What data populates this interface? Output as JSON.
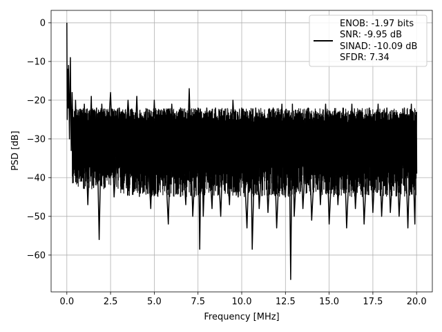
{
  "chart_data": {
    "type": "line",
    "xlabel": "Frequency [MHz]",
    "ylabel": "PSD [dB]",
    "xlim": [
      -0.9,
      20.9
    ],
    "ylim": [
      -69.5,
      3.2
    ],
    "xticks": [
      0.0,
      2.5,
      5.0,
      7.5,
      10.0,
      12.5,
      15.0,
      17.5,
      20.0
    ],
    "xtick_labels": [
      "0.0",
      "2.5",
      "5.0",
      "7.5",
      "10.0",
      "12.5",
      "15.0",
      "17.5",
      "20.0"
    ],
    "yticks": [
      0,
      -10,
      -20,
      -30,
      -40,
      -50,
      -60
    ],
    "ytick_labels": [
      "0",
      "−10",
      "−20",
      "−30",
      "−40",
      "−50",
      "−60"
    ],
    "grid": true,
    "legend_position": "top-right",
    "colors": {
      "line": "#000000",
      "grid": "#b0b0b0"
    },
    "series": [
      {
        "name": "ENOB: -1.97 bits\nSNR: -9.95 dB\nSINAD: -10.09 dB\nSFDR: 7.34",
        "x": [
          0.0,
          0.02,
          0.05,
          0.08,
          0.1,
          0.15,
          0.2,
          0.25,
          0.3,
          0.4,
          0.5,
          0.6,
          0.75,
          0.9,
          1.0,
          1.2,
          1.4,
          1.5,
          1.7,
          1.85,
          2.0,
          2.2,
          2.5,
          2.7,
          3.0,
          3.2,
          3.5,
          3.8,
          4.0,
          4.2,
          4.5,
          4.8,
          5.0,
          5.2,
          5.5,
          5.8,
          6.0,
          6.3,
          6.5,
          6.8,
          7.0,
          7.2,
          7.5,
          7.6,
          7.7,
          7.8,
          8.0,
          8.3,
          8.5,
          8.8,
          9.0,
          9.3,
          9.5,
          9.8,
          10.0,
          10.3,
          10.5,
          10.6,
          10.8,
          11.0,
          11.3,
          11.5,
          11.8,
          12.0,
          12.3,
          12.5,
          12.7,
          12.8,
          12.9,
          13.0,
          13.3,
          13.5,
          13.8,
          14.0,
          14.3,
          14.5,
          14.8,
          15.0,
          15.3,
          15.5,
          15.8,
          16.0,
          16.3,
          16.5,
          16.8,
          17.0,
          17.3,
          17.5,
          17.8,
          18.0,
          18.3,
          18.5,
          18.8,
          19.0,
          19.3,
          19.5,
          19.7,
          19.9,
          20.0
        ],
        "y": [
          0.0,
          -25.0,
          -12.0,
          -22.0,
          -11.0,
          -30.0,
          -9.0,
          -33.0,
          -18.0,
          -38.0,
          -20.0,
          -36.0,
          -24.0,
          -40.0,
          -21.0,
          -47.0,
          -19.0,
          -42.0,
          -22.0,
          -56.0,
          -21.0,
          -40.0,
          -18.0,
          -45.0,
          -22.0,
          -43.0,
          -20.0,
          -42.0,
          -19.0,
          -44.0,
          -23.0,
          -48.0,
          -20.0,
          -44.0,
          -23.0,
          -52.0,
          -21.0,
          -43.0,
          -22.0,
          -47.0,
          -17.0,
          -50.0,
          -22.0,
          -58.5,
          -23.0,
          -50.0,
          -22.0,
          -48.0,
          -22.0,
          -50.0,
          -23.0,
          -47.0,
          -20.0,
          -45.0,
          -22.0,
          -53.0,
          -23.0,
          -58.5,
          -22.0,
          -48.0,
          -24.0,
          -49.0,
          -22.0,
          -53.0,
          -21.0,
          -45.0,
          -23.0,
          -66.3,
          -21.0,
          -50.0,
          -23.0,
          -48.0,
          -22.0,
          -51.0,
          -24.0,
          -47.0,
          -21.0,
          -52.0,
          -24.0,
          -47.0,
          -22.0,
          -53.0,
          -21.0,
          -48.0,
          -23.0,
          -52.0,
          -22.0,
          -49.0,
          -21.0,
          -50.0,
          -22.0,
          -49.0,
          -24.0,
          -50.0,
          -22.0,
          -53.0,
          -21.0,
          -52.0,
          -23.0
        ]
      }
    ]
  },
  "legend": {
    "lines": [
      "ENOB: -1.97 bits",
      "SNR: -9.95 dB",
      "SINAD: -10.09 dB",
      "SFDR: 7.34"
    ]
  }
}
